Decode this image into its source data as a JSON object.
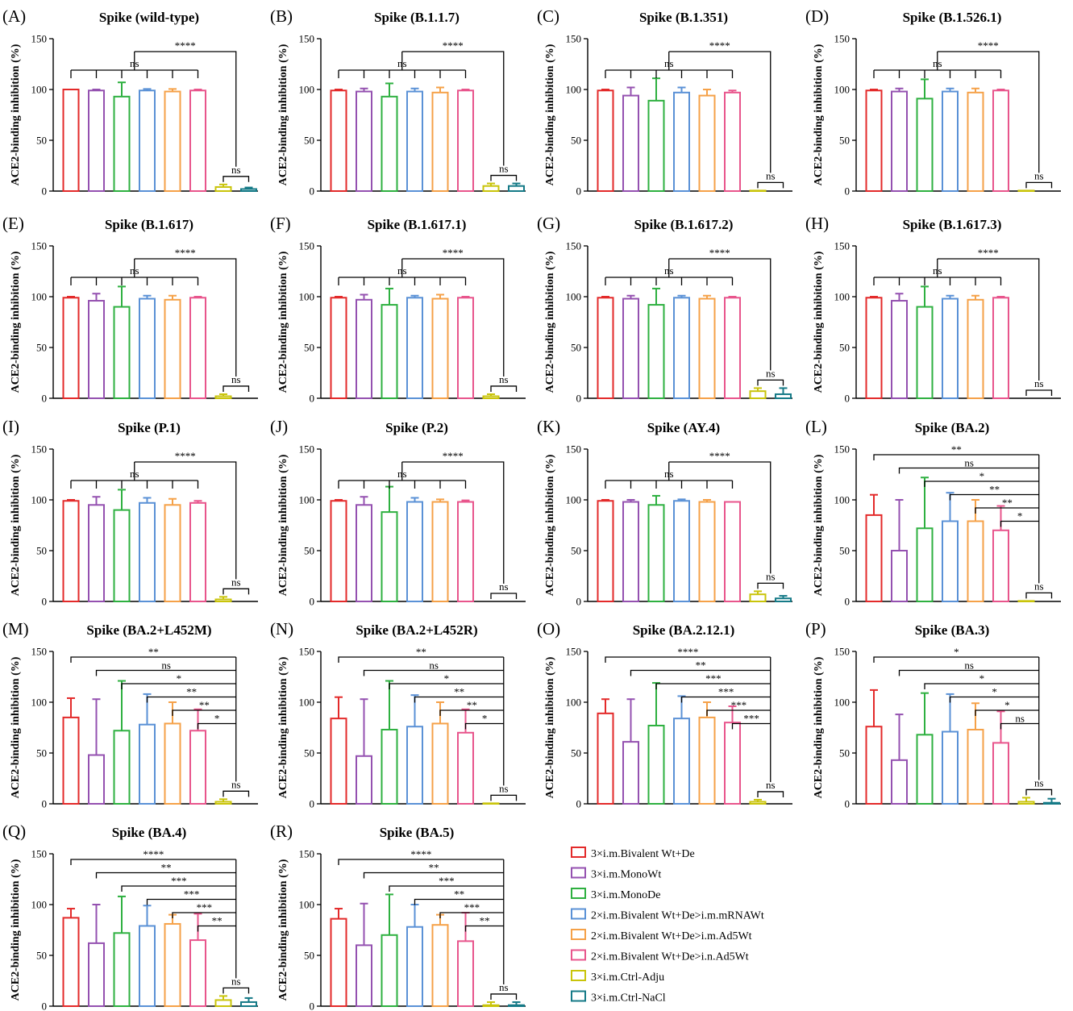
{
  "colors": [
    "#e32a2a",
    "#9451b0",
    "#2eb040",
    "#5a91d6",
    "#f5a148",
    "#e8558c",
    "#c9c40a",
    "#157a87"
  ],
  "legend": {
    "position": "bottom-right",
    "items": [
      "3×i.m.Bivalent Wt+De",
      "3×i.m.MonoWt",
      "3×i.m.MonoDe",
      "2×i.m.Bivalent Wt+De>i.m.mRNAWt",
      "2×i.m.Bivalent Wt+De>i.m.Ad5Wt",
      "2×i.m.Bivalent Wt+De>i.n.Ad5Wt",
      "3×i.m.Ctrl-Adju",
      "3×i.m.Ctrl-NaCl"
    ]
  },
  "chart_data": [
    {
      "type": "bar",
      "letter": "(A)",
      "title": "Spike (wild-type)",
      "ylabel": "ACE2-binding inhibition (%)",
      "ylim": [
        0,
        150
      ],
      "yticks": [
        0,
        50,
        100,
        150
      ],
      "values": [
        100,
        99,
        93,
        99,
        98,
        99,
        4,
        2
      ],
      "errors": [
        0,
        1,
        14,
        1.5,
        2.5,
        1,
        2.5,
        1.5
      ],
      "comparisons": {
        "style": "bracket",
        "group_label": "ns",
        "group_bars": [
          0,
          1,
          2,
          3,
          4,
          5
        ],
        "overall_label": "****",
        "control_label": "ns"
      }
    },
    {
      "type": "bar",
      "letter": "(B)",
      "title": "Spike (B.1.1.7)",
      "ylabel": "ACE2-binding inhibition (%)",
      "ylim": [
        0,
        150
      ],
      "yticks": [
        0,
        50,
        100,
        150
      ],
      "values": [
        99,
        98,
        93,
        98,
        97,
        99,
        5,
        5
      ],
      "errors": [
        1,
        3,
        13,
        3,
        5,
        1,
        2.5,
        2.5
      ],
      "comparisons": {
        "style": "bracket",
        "group_label": "ns",
        "group_bars": [
          0,
          1,
          2,
          3,
          4,
          5
        ],
        "overall_label": "****",
        "control_label": "ns"
      }
    },
    {
      "type": "bar",
      "letter": "(C)",
      "title": "Spike (B.1.351)",
      "ylabel": "ACE2-binding inhibition (%)",
      "ylim": [
        0,
        150
      ],
      "yticks": [
        0,
        50,
        100,
        150
      ],
      "values": [
        99,
        94,
        89,
        97,
        94,
        97,
        0.5,
        0
      ],
      "errors": [
        1,
        8,
        22,
        5,
        6,
        2,
        0,
        0
      ],
      "comparisons": {
        "style": "bracket",
        "group_label": "ns",
        "group_bars": [
          0,
          1,
          2,
          3,
          4,
          5
        ],
        "overall_label": "****",
        "control_label": "ns"
      }
    },
    {
      "type": "bar",
      "letter": "(D)",
      "title": "Spike (B.1.526.1)",
      "ylabel": "ACE2-binding inhibition (%)",
      "ylim": [
        0,
        150
      ],
      "yticks": [
        0,
        50,
        100,
        150
      ],
      "values": [
        99,
        98,
        91,
        98,
        97,
        99,
        0.5,
        0
      ],
      "errors": [
        1,
        3,
        19,
        3,
        4,
        1,
        0,
        0
      ],
      "comparisons": {
        "style": "bracket",
        "group_label": "ns",
        "group_bars": [
          0,
          1,
          2,
          3,
          4,
          5
        ],
        "overall_label": "****",
        "control_label": "ns"
      }
    },
    {
      "type": "bar",
      "letter": "(E)",
      "title": "Spike (B.1.617)",
      "ylabel": "ACE2-binding inhibition (%)",
      "ylim": [
        0,
        150
      ],
      "yticks": [
        0,
        50,
        100,
        150
      ],
      "values": [
        99,
        96,
        90,
        98,
        97,
        99,
        2,
        0
      ],
      "errors": [
        1,
        7,
        20,
        3,
        4,
        1,
        2,
        0
      ],
      "comparisons": {
        "style": "bracket",
        "group_label": "ns",
        "group_bars": [
          0,
          1,
          2,
          3,
          4,
          5
        ],
        "overall_label": "****",
        "control_label": "ns"
      }
    },
    {
      "type": "bar",
      "letter": "(F)",
      "title": "Spike (B.1.617.1)",
      "ylabel": "ACE2-binding inhibition (%)",
      "ylim": [
        0,
        150
      ],
      "yticks": [
        0,
        50,
        100,
        150
      ],
      "values": [
        99,
        97,
        92,
        99,
        98,
        99,
        2,
        0
      ],
      "errors": [
        1,
        5,
        16,
        2,
        4,
        1,
        2,
        0
      ],
      "comparisons": {
        "style": "bracket",
        "group_label": "ns",
        "group_bars": [
          0,
          1,
          2,
          3,
          4,
          5
        ],
        "overall_label": "****",
        "control_label": "ns"
      }
    },
    {
      "type": "bar",
      "letter": "(G)",
      "title": "Spike (B.1.617.2)",
      "ylabel": "ACE2-binding inhibition (%)",
      "ylim": [
        0,
        150
      ],
      "yticks": [
        0,
        50,
        100,
        150
      ],
      "values": [
        99,
        98,
        92,
        99,
        98,
        99,
        7,
        4
      ],
      "errors": [
        1,
        3,
        16,
        2,
        3,
        1,
        3,
        6
      ],
      "comparisons": {
        "style": "bracket",
        "group_label": "ns",
        "group_bars": [
          0,
          1,
          2,
          3,
          4,
          5
        ],
        "overall_label": "****",
        "control_label": "ns"
      }
    },
    {
      "type": "bar",
      "letter": "(H)",
      "title": "Spike (B.1.617.3)",
      "ylabel": "ACE2-binding inhibition (%)",
      "ylim": [
        0,
        150
      ],
      "yticks": [
        0,
        50,
        100,
        150
      ],
      "values": [
        99,
        96,
        90,
        98,
        97,
        99,
        0,
        0
      ],
      "errors": [
        1,
        7,
        20,
        3,
        4,
        1,
        0,
        0
      ],
      "comparisons": {
        "style": "bracket",
        "group_label": "ns",
        "group_bars": [
          0,
          1,
          2,
          3,
          4,
          5
        ],
        "overall_label": "****",
        "control_label": "ns"
      }
    },
    {
      "type": "bar",
      "letter": "(I)",
      "title": "Spike (P.1)",
      "ylabel": "ACE2-binding inhibition (%)",
      "ylim": [
        0,
        150
      ],
      "yticks": [
        0,
        50,
        100,
        150
      ],
      "values": [
        99,
        95,
        90,
        97,
        95,
        97,
        2,
        0
      ],
      "errors": [
        1,
        8,
        20,
        5,
        6,
        2,
        2.5,
        0
      ],
      "comparisons": {
        "style": "bracket",
        "group_label": "ns",
        "group_bars": [
          0,
          1,
          2,
          3,
          4,
          5
        ],
        "overall_label": "****",
        "control_label": "ns"
      }
    },
    {
      "type": "bar",
      "letter": "(J)",
      "title": "Spike (P.2)",
      "ylabel": "ACE2-binding inhibition (%)",
      "ylim": [
        0,
        150
      ],
      "yticks": [
        0,
        50,
        100,
        150
      ],
      "values": [
        99,
        95,
        88,
        98,
        98,
        98,
        0,
        0
      ],
      "errors": [
        1,
        8,
        25,
        4,
        2.5,
        1.5,
        0,
        0
      ],
      "comparisons": {
        "style": "bracket",
        "group_label": "ns",
        "group_bars": [
          0,
          1,
          2,
          3,
          4,
          5
        ],
        "overall_label": "****",
        "control_label": "ns"
      }
    },
    {
      "type": "bar",
      "letter": "(K)",
      "title": "Spike (AY.4)",
      "ylabel": "ACE2-binding inhibition (%)",
      "ylim": [
        0,
        150
      ],
      "yticks": [
        0,
        50,
        100,
        150
      ],
      "values": [
        99,
        98,
        95,
        99,
        98,
        98,
        7,
        3
      ],
      "errors": [
        1,
        2,
        9,
        1.5,
        2,
        0,
        3,
        2.5
      ],
      "comparisons": {
        "style": "bracket",
        "group_label": "ns",
        "group_bars": [
          0,
          1,
          2,
          3,
          4,
          5
        ],
        "overall_label": "****",
        "control_label": "ns"
      }
    },
    {
      "type": "bar",
      "letter": "(L)",
      "title": "Spike (BA.2)",
      "ylabel": "ACE2-binding inhibition (%)",
      "ylim": [
        0,
        150
      ],
      "yticks": [
        0,
        50,
        100,
        150
      ],
      "values": [
        85,
        50,
        72,
        79,
        79,
        70,
        0.5,
        0
      ],
      "errors": [
        20,
        50,
        50,
        28,
        21,
        24,
        0,
        0
      ],
      "comparisons": {
        "style": "ladder",
        "labels": [
          "**",
          "ns",
          "*",
          "**",
          "**",
          "*"
        ],
        "control_label": "ns"
      }
    },
    {
      "type": "bar",
      "letter": "(M)",
      "title": "Spike (BA.2+L452M)",
      "ylabel": "ACE2-binding inhibition (%)",
      "ylim": [
        0,
        150
      ],
      "yticks": [
        0,
        50,
        100,
        150
      ],
      "values": [
        85,
        48,
        72,
        78,
        79,
        72,
        2,
        0
      ],
      "errors": [
        19,
        55,
        49,
        30,
        21,
        21,
        2.5,
        0
      ],
      "comparisons": {
        "style": "ladder",
        "labels": [
          "**",
          "ns",
          "*",
          "**",
          "**",
          "*"
        ],
        "control_label": "ns"
      }
    },
    {
      "type": "bar",
      "letter": "(N)",
      "title": "Spike (BA.2+L452R)",
      "ylabel": "ACE2-binding inhibition (%)",
      "ylim": [
        0,
        150
      ],
      "yticks": [
        0,
        50,
        100,
        150
      ],
      "values": [
        84,
        47,
        73,
        76,
        79,
        70,
        0.5,
        0
      ],
      "errors": [
        21,
        56,
        48,
        31,
        21,
        23,
        0,
        0
      ],
      "comparisons": {
        "style": "ladder",
        "labels": [
          "**",
          "ns",
          "*",
          "**",
          "**",
          "*"
        ],
        "control_label": "ns"
      }
    },
    {
      "type": "bar",
      "letter": "(O)",
      "title": "Spike (BA.2.12.1)",
      "ylabel": "ACE2-binding inhibition (%)",
      "ylim": [
        0,
        150
      ],
      "yticks": [
        0,
        50,
        100,
        150
      ],
      "values": [
        89,
        61,
        77,
        84,
        85,
        80,
        2,
        0
      ],
      "errors": [
        14,
        42,
        42,
        22,
        15,
        16,
        2,
        0
      ],
      "comparisons": {
        "style": "ladder",
        "labels": [
          "****",
          "**",
          "***",
          "***",
          "***",
          "***"
        ],
        "control_label": "ns"
      }
    },
    {
      "type": "bar",
      "letter": "(P)",
      "title": "Spike (BA.3)",
      "ylabel": "ACE2-binding inhibition (%)",
      "ylim": [
        0,
        150
      ],
      "yticks": [
        0,
        50,
        100,
        150
      ],
      "values": [
        76,
        43,
        68,
        71,
        73,
        60,
        2,
        1
      ],
      "errors": [
        36,
        45,
        41,
        37,
        26,
        31,
        4,
        4
      ],
      "comparisons": {
        "style": "ladder",
        "labels": [
          "*",
          "ns",
          "*",
          "*",
          "*",
          "ns"
        ],
        "control_label": "ns"
      }
    },
    {
      "type": "bar",
      "letter": "(Q)",
      "title": "Spike (BA.4)",
      "ylabel": "ACE2-binding inhibition (%)",
      "ylim": [
        0,
        150
      ],
      "yticks": [
        0,
        50,
        100,
        150
      ],
      "values": [
        87,
        62,
        72,
        79,
        81,
        65,
        6,
        4
      ],
      "errors": [
        9,
        38,
        36,
        20,
        9,
        26,
        4,
        4
      ],
      "comparisons": {
        "style": "ladder",
        "labels": [
          "****",
          "**",
          "***",
          "***",
          "***",
          "**"
        ],
        "control_label": "ns"
      }
    },
    {
      "type": "bar",
      "letter": "(R)",
      "title": "Spike (BA.5)",
      "ylabel": "ACE2-binding inhibition (%)",
      "ylim": [
        0,
        150
      ],
      "yticks": [
        0,
        50,
        100,
        150
      ],
      "values": [
        86,
        60,
        70,
        78,
        80,
        64,
        1,
        1
      ],
      "errors": [
        10,
        41,
        40,
        22,
        10,
        28,
        3,
        3
      ],
      "comparisons": {
        "style": "ladder",
        "labels": [
          "****",
          "**",
          "***",
          "**",
          "***",
          "**"
        ],
        "control_label": "ns"
      }
    }
  ]
}
